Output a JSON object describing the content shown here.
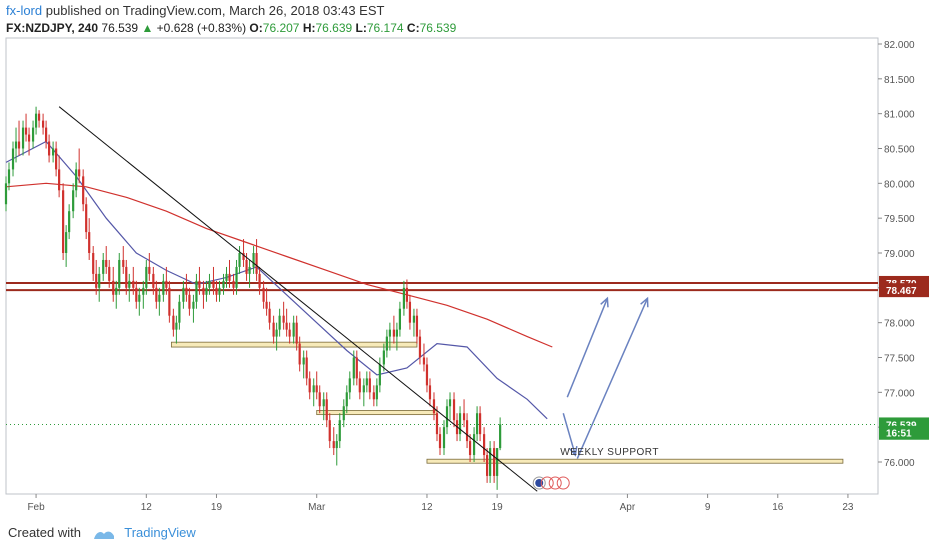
{
  "header": {
    "username": "fx-lord",
    "published_text": "published on TradingView.com, March 26, 2018 03:43 EST",
    "symbol": "FX:NZDJPY, 240",
    "last": "76.539",
    "change": "+0.628 (+0.83%)",
    "open_label": "O:",
    "open": "76.207",
    "high_label": "H:",
    "high": "76.639",
    "low_label": "L:",
    "low": "76.174",
    "close_label": "C:",
    "close": "76.539"
  },
  "footer": {
    "created_with": "Created with",
    "brand": "TradingView"
  },
  "colors": {
    "bull": "#2e9b3a",
    "bear": "#d0312d",
    "ma_fast": "#5457a8",
    "ma_slow": "#d0312d",
    "resistance": "#9c2a1d",
    "support_fill": "#f7eab9",
    "support_stroke": "#7a6a3a",
    "arrow": "#6a82c0"
  },
  "chart_data": {
    "type": "candlestick",
    "ylim": [
      75.6,
      82.0
    ],
    "y_ticks": [
      "82.000",
      "81.500",
      "81.000",
      "80.500",
      "80.000",
      "79.500",
      "79.000",
      "78.500",
      "78.000",
      "77.500",
      "77.000",
      "76.500",
      "76.000"
    ],
    "x_ticks": [
      "Feb",
      "12",
      "19",
      "Mar",
      "12",
      "19",
      "Apr",
      "9",
      "16",
      "23"
    ],
    "x_tick_days": [
      0,
      11,
      18,
      28,
      39,
      46,
      59,
      67,
      74,
      81
    ],
    "x_range_days": [
      -3,
      84
    ],
    "last_day": 51,
    "price_labels": [
      {
        "text": "78.570",
        "value": 78.57
      },
      {
        "text": "78.467",
        "value": 78.467
      },
      {
        "text": "76.539",
        "value": 76.539
      },
      {
        "text": "16:51",
        "value": 76.42
      }
    ],
    "resistance_lines": [
      78.57,
      78.467
    ],
    "support_zones": [
      {
        "d0": 13.5,
        "d1": 38.0,
        "y0": 77.65,
        "y1": 77.72
      },
      {
        "d0": 28.0,
        "d1": 40.0,
        "y0": 76.68,
        "y1": 76.74
      },
      {
        "d0": 39.0,
        "d1": 80.5,
        "y0": 75.99,
        "y1": 76.04
      }
    ],
    "annotation": "WEEKLY SUPPORT",
    "trendline": [
      {
        "d": 2.3,
        "v": 81.1
      },
      {
        "d": 50.0,
        "v": 75.58
      }
    ],
    "arrows": [
      [
        {
          "d": 53,
          "v": 76.93
        },
        {
          "d": 57,
          "v": 78.35
        }
      ],
      [
        {
          "d": 54,
          "v": 76.05
        },
        {
          "d": 61,
          "v": 78.35
        }
      ]
    ],
    "down_arrow": {
      "d": 52.6,
      "v": 76.7,
      "d2": 53.8,
      "v2": 76.1
    },
    "ma_fast": [
      [
        -3,
        80.3
      ],
      [
        1,
        80.6
      ],
      [
        4,
        80.1
      ],
      [
        7,
        79.5
      ],
      [
        10,
        79.0
      ],
      [
        13,
        78.75
      ],
      [
        16,
        78.55
      ],
      [
        19,
        78.65
      ],
      [
        22,
        78.8
      ],
      [
        25,
        78.4
      ],
      [
        28,
        78.0
      ],
      [
        31,
        77.6
      ],
      [
        34,
        77.25
      ],
      [
        37,
        77.35
      ],
      [
        40,
        77.7
      ],
      [
        43,
        77.65
      ],
      [
        46,
        77.2
      ],
      [
        49,
        76.9
      ],
      [
        51,
        76.62
      ]
    ],
    "ma_slow": [
      [
        -3,
        79.95
      ],
      [
        1,
        80.0
      ],
      [
        5,
        79.95
      ],
      [
        9,
        79.8
      ],
      [
        13,
        79.6
      ],
      [
        17,
        79.35
      ],
      [
        21,
        79.15
      ],
      [
        25,
        78.95
      ],
      [
        29,
        78.75
      ],
      [
        33,
        78.55
      ],
      [
        37,
        78.4
      ],
      [
        41,
        78.25
      ],
      [
        45,
        78.05
      ],
      [
        49,
        77.8
      ],
      [
        51.5,
        77.65
      ]
    ],
    "ohlc": [
      [
        -3,
        79.7,
        80.1,
        79.6,
        80.0
      ],
      [
        -2.7,
        80.0,
        80.3,
        79.9,
        80.2
      ],
      [
        -2.3,
        80.2,
        80.6,
        80.1,
        80.5
      ],
      [
        -2.0,
        80.5,
        80.8,
        80.3,
        80.6
      ],
      [
        -1.7,
        80.6,
        80.9,
        80.4,
        80.5
      ],
      [
        -1.3,
        80.5,
        80.9,
        80.4,
        80.8
      ],
      [
        -1.0,
        80.8,
        81.0,
        80.6,
        80.7
      ],
      [
        -0.7,
        80.7,
        80.8,
        80.4,
        80.6
      ],
      [
        -0.3,
        80.6,
        80.9,
        80.5,
        80.8
      ],
      [
        0.0,
        80.8,
        81.1,
        80.7,
        81.0
      ],
      [
        0.3,
        81.0,
        81.05,
        80.8,
        80.9
      ],
      [
        0.7,
        80.9,
        81.0,
        80.7,
        80.8
      ],
      [
        1.0,
        80.8,
        80.9,
        80.5,
        80.6
      ],
      [
        1.3,
        80.6,
        80.7,
        80.3,
        80.4
      ],
      [
        1.7,
        80.4,
        80.6,
        80.3,
        80.5
      ],
      [
        2.0,
        80.5,
        80.6,
        80.1,
        80.2
      ],
      [
        2.3,
        80.2,
        80.4,
        79.8,
        79.9
      ],
      [
        2.7,
        79.9,
        80.0,
        78.9,
        79.0
      ],
      [
        3.0,
        79.0,
        79.4,
        78.8,
        79.3
      ],
      [
        3.3,
        79.3,
        79.7,
        79.2,
        79.6
      ],
      [
        3.7,
        79.6,
        80.0,
        79.5,
        79.9
      ],
      [
        4.0,
        79.9,
        80.3,
        79.8,
        80.2
      ],
      [
        4.3,
        80.2,
        80.5,
        80.0,
        80.1
      ],
      [
        4.7,
        80.1,
        80.2,
        79.6,
        79.7
      ],
      [
        5.0,
        79.7,
        79.8,
        79.2,
        79.3
      ],
      [
        5.3,
        79.3,
        79.5,
        78.9,
        79.0
      ],
      [
        5.7,
        79.0,
        79.1,
        78.6,
        78.7
      ],
      [
        6.0,
        78.7,
        78.9,
        78.4,
        78.5
      ],
      [
        6.3,
        78.5,
        78.8,
        78.3,
        78.7
      ],
      [
        6.7,
        78.7,
        79.0,
        78.6,
        78.9
      ],
      [
        7.0,
        78.9,
        79.1,
        78.7,
        78.8
      ],
      [
        7.3,
        78.8,
        78.9,
        78.5,
        78.6
      ],
      [
        7.7,
        78.6,
        78.8,
        78.3,
        78.4
      ],
      [
        8.0,
        78.4,
        78.6,
        78.2,
        78.5
      ],
      [
        8.3,
        78.5,
        79.0,
        78.4,
        78.9
      ],
      [
        8.7,
        78.9,
        79.1,
        78.7,
        78.8
      ],
      [
        9.0,
        78.8,
        78.9,
        78.4,
        78.5
      ],
      [
        9.3,
        78.5,
        78.7,
        78.3,
        78.6
      ],
      [
        9.7,
        78.6,
        78.8,
        78.4,
        78.5
      ],
      [
        10.0,
        78.5,
        78.6,
        78.2,
        78.3
      ],
      [
        10.3,
        78.3,
        78.5,
        78.1,
        78.4
      ],
      [
        10.7,
        78.4,
        78.6,
        78.2,
        78.5
      ],
      [
        11.0,
        78.5,
        78.9,
        78.4,
        78.8
      ],
      [
        11.3,
        78.8,
        79.0,
        78.6,
        78.7
      ],
      [
        11.7,
        78.7,
        78.8,
        78.4,
        78.5
      ],
      [
        12.0,
        78.5,
        78.6,
        78.2,
        78.3
      ],
      [
        12.3,
        78.3,
        78.5,
        78.1,
        78.4
      ],
      [
        12.7,
        78.4,
        78.7,
        78.3,
        78.6
      ],
      [
        13.0,
        78.6,
        78.8,
        78.4,
        78.5
      ],
      [
        13.3,
        78.5,
        78.6,
        78.0,
        78.1
      ],
      [
        13.7,
        78.1,
        78.2,
        77.8,
        77.9
      ],
      [
        14.0,
        77.9,
        78.1,
        77.7,
        78.0
      ],
      [
        14.3,
        78.0,
        78.4,
        77.9,
        78.3
      ],
      [
        14.7,
        78.3,
        78.6,
        78.2,
        78.5
      ],
      [
        15.0,
        78.5,
        78.7,
        78.3,
        78.4
      ],
      [
        15.3,
        78.4,
        78.5,
        78.1,
        78.2
      ],
      [
        15.7,
        78.2,
        78.4,
        78.0,
        78.3
      ],
      [
        16.0,
        78.3,
        78.7,
        78.2,
        78.6
      ],
      [
        16.3,
        78.6,
        78.8,
        78.4,
        78.5
      ],
      [
        16.7,
        78.5,
        78.6,
        78.2,
        78.4
      ],
      [
        17.0,
        78.4,
        78.6,
        78.3,
        78.5
      ],
      [
        17.3,
        78.5,
        78.7,
        78.4,
        78.6
      ],
      [
        17.7,
        78.6,
        78.8,
        78.4,
        78.5
      ],
      [
        18.0,
        78.5,
        78.6,
        78.3,
        78.4
      ],
      [
        18.3,
        78.4,
        78.6,
        78.3,
        78.5
      ],
      [
        18.7,
        78.5,
        78.7,
        78.4,
        78.6
      ],
      [
        19.0,
        78.6,
        78.8,
        78.5,
        78.7
      ],
      [
        19.3,
        78.7,
        78.9,
        78.5,
        78.6
      ],
      [
        19.7,
        78.6,
        78.7,
        78.4,
        78.5
      ],
      [
        20.0,
        78.5,
        78.9,
        78.4,
        78.8
      ],
      [
        20.3,
        78.8,
        79.1,
        78.7,
        79.0
      ],
      [
        20.7,
        79.0,
        79.2,
        78.8,
        78.9
      ],
      [
        21.0,
        78.9,
        79.0,
        78.6,
        78.7
      ],
      [
        21.3,
        78.7,
        78.9,
        78.5,
        78.8
      ],
      [
        21.7,
        78.8,
        79.1,
        78.7,
        79.0
      ],
      [
        22.0,
        79.0,
        79.2,
        78.6,
        78.7
      ],
      [
        22.3,
        78.7,
        78.8,
        78.4,
        78.5
      ],
      [
        22.7,
        78.5,
        78.6,
        78.2,
        78.3
      ],
      [
        23.0,
        78.3,
        78.5,
        78.1,
        78.2
      ],
      [
        23.3,
        78.2,
        78.3,
        77.9,
        78.0
      ],
      [
        23.7,
        78.0,
        78.1,
        77.7,
        77.8
      ],
      [
        24.0,
        77.8,
        78.0,
        77.6,
        77.9
      ],
      [
        24.3,
        77.9,
        78.2,
        77.8,
        78.1
      ],
      [
        24.7,
        78.1,
        78.3,
        77.9,
        78.0
      ],
      [
        25.0,
        78.0,
        78.2,
        77.8,
        77.9
      ],
      [
        25.3,
        77.9,
        78.0,
        77.7,
        77.8
      ],
      [
        25.7,
        77.8,
        78.1,
        77.7,
        78.0
      ],
      [
        26.0,
        78.0,
        78.1,
        77.6,
        77.7
      ],
      [
        26.3,
        77.7,
        77.8,
        77.3,
        77.4
      ],
      [
        26.7,
        77.4,
        77.6,
        77.2,
        77.5
      ],
      [
        27.0,
        77.5,
        77.6,
        77.1,
        77.2
      ],
      [
        27.3,
        77.2,
        77.3,
        76.9,
        77.0
      ],
      [
        27.7,
        77.0,
        77.2,
        76.8,
        77.1
      ],
      [
        28.0,
        77.1,
        77.3,
        76.9,
        77.0
      ],
      [
        28.3,
        77.0,
        77.1,
        76.7,
        76.8
      ],
      [
        28.7,
        76.8,
        77.0,
        76.6,
        76.9
      ],
      [
        29.0,
        76.9,
        77.0,
        76.5,
        76.6
      ],
      [
        29.3,
        76.6,
        76.7,
        76.2,
        76.3
      ],
      [
        29.7,
        76.3,
        76.5,
        76.1,
        76.2
      ],
      [
        30.0,
        76.2,
        76.4,
        75.95,
        76.3
      ],
      [
        30.3,
        76.3,
        76.7,
        76.2,
        76.6
      ],
      [
        30.7,
        76.6,
        76.9,
        76.5,
        76.8
      ],
      [
        31.0,
        76.8,
        77.1,
        76.7,
        77.0
      ],
      [
        31.3,
        77.0,
        77.3,
        76.9,
        77.2
      ],
      [
        31.7,
        77.2,
        77.6,
        77.1,
        77.5
      ],
      [
        32.0,
        77.5,
        77.6,
        77.1,
        77.2
      ],
      [
        32.3,
        77.2,
        77.3,
        76.9,
        77.0
      ],
      [
        32.7,
        77.0,
        77.2,
        76.8,
        77.1
      ],
      [
        33.0,
        77.1,
        77.3,
        77.0,
        77.2
      ],
      [
        33.3,
        77.2,
        77.3,
        76.9,
        77.0
      ],
      [
        33.7,
        77.0,
        77.1,
        76.8,
        76.9
      ],
      [
        34.0,
        76.9,
        77.2,
        76.8,
        77.1
      ],
      [
        34.3,
        77.1,
        77.5,
        77.0,
        77.4
      ],
      [
        34.7,
        77.4,
        77.7,
        77.3,
        77.6
      ],
      [
        35.0,
        77.6,
        77.9,
        77.5,
        77.8
      ],
      [
        35.3,
        77.8,
        78.0,
        77.6,
        77.9
      ],
      [
        35.7,
        77.9,
        78.1,
        77.7,
        77.8
      ],
      [
        36.0,
        77.8,
        78.0,
        77.6,
        77.9
      ],
      [
        36.3,
        77.9,
        78.3,
        77.8,
        78.2
      ],
      [
        36.7,
        78.2,
        78.6,
        78.1,
        78.5
      ],
      [
        37.0,
        78.5,
        78.62,
        78.2,
        78.3
      ],
      [
        37.3,
        78.3,
        78.4,
        77.9,
        78.0
      ],
      [
        37.7,
        78.0,
        78.2,
        77.8,
        78.1
      ],
      [
        38.0,
        78.1,
        78.2,
        77.7,
        77.8
      ],
      [
        38.3,
        77.8,
        77.9,
        77.4,
        77.5
      ],
      [
        38.7,
        77.5,
        77.7,
        77.3,
        77.4
      ],
      [
        39.0,
        77.4,
        77.5,
        77.0,
        77.1
      ],
      [
        39.3,
        77.1,
        77.2,
        76.8,
        76.9
      ],
      [
        39.7,
        76.9,
        77.0,
        76.6,
        76.7
      ],
      [
        40.0,
        76.7,
        76.8,
        76.3,
        76.4
      ],
      [
        40.3,
        76.4,
        76.5,
        76.1,
        76.2
      ],
      [
        40.7,
        76.2,
        76.6,
        76.1,
        76.5
      ],
      [
        41.0,
        76.5,
        76.9,
        76.4,
        76.8
      ],
      [
        41.3,
        76.8,
        77.0,
        76.6,
        76.9
      ],
      [
        41.7,
        76.9,
        77.0,
        76.5,
        76.6
      ],
      [
        42.0,
        76.6,
        76.7,
        76.3,
        76.4
      ],
      [
        42.3,
        76.4,
        76.8,
        76.3,
        76.7
      ],
      [
        42.7,
        76.7,
        76.9,
        76.5,
        76.6
      ],
      [
        43.0,
        76.6,
        76.7,
        76.2,
        76.3
      ],
      [
        43.3,
        76.3,
        76.4,
        76.0,
        76.1
      ],
      [
        43.7,
        76.1,
        76.5,
        76.0,
        76.4
      ],
      [
        44.0,
        76.4,
        76.8,
        76.3,
        76.7
      ],
      [
        44.3,
        76.7,
        76.8,
        76.3,
        76.4
      ],
      [
        44.7,
        76.4,
        76.5,
        76.0,
        76.1
      ],
      [
        45.0,
        76.1,
        76.2,
        75.7,
        75.8
      ],
      [
        45.3,
        75.8,
        76.3,
        75.7,
        76.2
      ],
      [
        45.7,
        76.2,
        76.3,
        75.7,
        75.8
      ],
      [
        46.0,
        75.8,
        76.2,
        75.6,
        76.2
      ],
      [
        46.3,
        76.2,
        76.64,
        76.17,
        76.54
      ]
    ]
  }
}
